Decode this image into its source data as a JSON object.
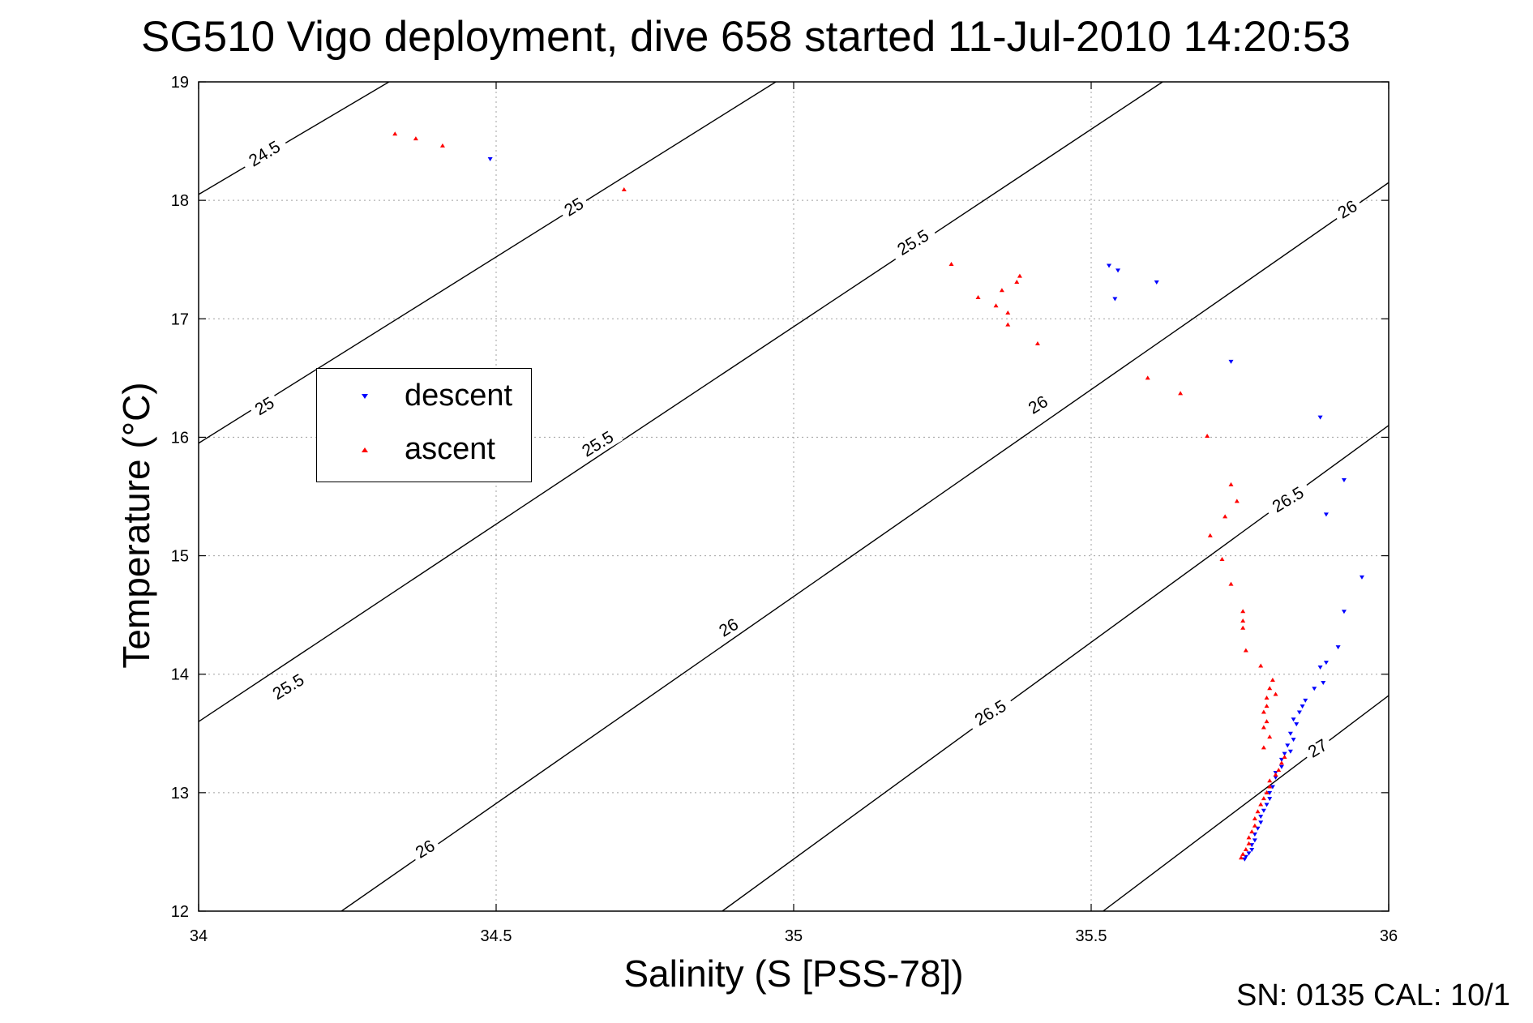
{
  "title": "SG510 Vigo deployment, dive 658 started 11-Jul-2010 14:20:53",
  "footer": "SN: 0135  CAL: 10/1",
  "chart_data": {
    "type": "scatter",
    "xlabel": "Salinity (S [PSS-78])",
    "ylabel": "Temperature (°C)",
    "xlim": [
      34,
      36
    ],
    "ylim": [
      12,
      19
    ],
    "xticks": [
      34,
      34.5,
      35,
      35.5,
      36
    ],
    "xtick_labels": [
      "34",
      "34.5",
      "35",
      "35.5",
      "36"
    ],
    "yticks": [
      12,
      13,
      14,
      15,
      16,
      17,
      18,
      19
    ],
    "ytick_labels": [
      "12",
      "13",
      "14",
      "15",
      "16",
      "17",
      "18",
      "19"
    ],
    "grid": true,
    "legend_position": "left-center",
    "series": [
      {
        "name": "descent",
        "color": "#0000ff",
        "marker": "triangle-down",
        "points": [
          [
            34.49,
            18.35
          ],
          [
            35.53,
            17.45
          ],
          [
            35.545,
            17.41
          ],
          [
            35.61,
            17.31
          ],
          [
            35.54,
            17.17
          ],
          [
            35.735,
            16.64
          ],
          [
            35.885,
            16.17
          ],
          [
            35.925,
            15.64
          ],
          [
            35.895,
            15.35
          ],
          [
            35.955,
            14.82
          ],
          [
            35.925,
            14.53
          ],
          [
            35.915,
            14.23
          ],
          [
            35.895,
            14.1
          ],
          [
            35.885,
            14.06
          ],
          [
            35.89,
            13.93
          ],
          [
            35.875,
            13.88
          ],
          [
            35.86,
            13.78
          ],
          [
            35.855,
            13.73
          ],
          [
            35.85,
            13.68
          ],
          [
            35.84,
            13.62
          ],
          [
            35.845,
            13.58
          ],
          [
            35.835,
            13.5
          ],
          [
            35.84,
            13.45
          ],
          [
            35.83,
            13.4
          ],
          [
            35.835,
            13.35
          ],
          [
            35.825,
            13.33
          ],
          [
            35.82,
            13.28
          ],
          [
            35.82,
            13.22
          ],
          [
            35.81,
            13.17
          ],
          [
            35.81,
            13.13
          ],
          [
            35.805,
            13.05
          ],
          [
            35.8,
            13.0
          ],
          [
            35.8,
            12.95
          ],
          [
            35.795,
            12.9
          ],
          [
            35.79,
            12.85
          ],
          [
            35.785,
            12.8
          ],
          [
            35.785,
            12.75
          ],
          [
            35.78,
            12.7
          ],
          [
            35.775,
            12.65
          ],
          [
            35.775,
            12.6
          ],
          [
            35.77,
            12.56
          ],
          [
            35.77,
            12.52
          ],
          [
            35.765,
            12.49
          ],
          [
            35.76,
            12.46
          ],
          [
            35.758,
            12.44
          ]
        ]
      },
      {
        "name": "ascent",
        "color": "#ff0000",
        "marker": "triangle-up",
        "points": [
          [
            34.33,
            18.56
          ],
          [
            34.365,
            18.52
          ],
          [
            34.41,
            18.46
          ],
          [
            34.715,
            18.09
          ],
          [
            35.265,
            17.46
          ],
          [
            35.38,
            17.36
          ],
          [
            35.375,
            17.31
          ],
          [
            35.35,
            17.24
          ],
          [
            35.31,
            17.18
          ],
          [
            35.34,
            17.11
          ],
          [
            35.36,
            17.05
          ],
          [
            35.36,
            16.95
          ],
          [
            35.41,
            16.79
          ],
          [
            35.595,
            16.5
          ],
          [
            35.65,
            16.37
          ],
          [
            35.695,
            16.01
          ],
          [
            35.735,
            15.6
          ],
          [
            35.745,
            15.46
          ],
          [
            35.725,
            15.33
          ],
          [
            35.7,
            15.17
          ],
          [
            35.72,
            14.97
          ],
          [
            35.735,
            14.76
          ],
          [
            35.755,
            14.53
          ],
          [
            35.755,
            14.45
          ],
          [
            35.755,
            14.39
          ],
          [
            35.76,
            14.2
          ],
          [
            35.785,
            14.07
          ],
          [
            35.805,
            13.95
          ],
          [
            35.8,
            13.88
          ],
          [
            35.81,
            13.83
          ],
          [
            35.795,
            13.8
          ],
          [
            35.795,
            13.73
          ],
          [
            35.79,
            13.68
          ],
          [
            35.795,
            13.6
          ],
          [
            35.79,
            13.55
          ],
          [
            35.8,
            13.47
          ],
          [
            35.79,
            13.38
          ],
          [
            35.825,
            13.3
          ],
          [
            35.82,
            13.25
          ],
          [
            35.815,
            13.19
          ],
          [
            35.81,
            13.15
          ],
          [
            35.8,
            13.1
          ],
          [
            35.8,
            13.05
          ],
          [
            35.795,
            13.0
          ],
          [
            35.79,
            12.95
          ],
          [
            35.785,
            12.9
          ],
          [
            35.78,
            12.84
          ],
          [
            35.775,
            12.78
          ],
          [
            35.775,
            12.72
          ],
          [
            35.77,
            12.67
          ],
          [
            35.765,
            12.62
          ],
          [
            35.765,
            12.57
          ],
          [
            35.76,
            12.52
          ],
          [
            35.755,
            12.48
          ],
          [
            35.752,
            12.45
          ]
        ]
      }
    ],
    "isopycnals": [
      {
        "label": "24.5",
        "segment": [
          [
            34,
            18.05
          ],
          [
            34.32,
            19.0
          ]
        ]
      },
      {
        "label": "25",
        "segment": [
          [
            34,
            15.95
          ],
          [
            34.97,
            19.0
          ]
        ]
      },
      {
        "label": "25.5",
        "segment": [
          [
            34,
            13.6
          ],
          [
            35.62,
            19.0
          ]
        ]
      },
      {
        "label": "26",
        "segment": [
          [
            34.24,
            12.0
          ],
          [
            36,
            18.15
          ]
        ]
      },
      {
        "label": "26.5",
        "segment": [
          [
            34.88,
            12.0
          ],
          [
            36,
            16.1
          ]
        ]
      },
      {
        "label": "27",
        "segment": [
          [
            35.52,
            12.0
          ],
          [
            36,
            13.82
          ]
        ]
      }
    ],
    "contour_labels": [
      {
        "text": "24.5",
        "at": [
          34.11,
          18.4
        ]
      },
      {
        "text": "25",
        "at": [
          34.63,
          17.95
        ]
      },
      {
        "text": "25.5",
        "at": [
          35.2,
          17.65
        ]
      },
      {
        "text": "26",
        "at": [
          35.93,
          17.93
        ]
      },
      {
        "text": "25",
        "at": [
          34.11,
          16.27
        ]
      },
      {
        "text": "25.5",
        "at": [
          34.67,
          15.95
        ]
      },
      {
        "text": "26",
        "at": [
          35.41,
          16.28
        ]
      },
      {
        "text": "26.5",
        "at": [
          35.83,
          15.48
        ]
      },
      {
        "text": "25.5",
        "at": [
          34.15,
          13.9
        ]
      },
      {
        "text": "26",
        "at": [
          34.89,
          14.4
        ]
      },
      {
        "text": "26.5",
        "at": [
          35.33,
          13.68
        ]
      },
      {
        "text": "27",
        "at": [
          35.88,
          13.38
        ]
      },
      {
        "text": "26",
        "at": [
          34.38,
          12.53
        ]
      }
    ]
  }
}
